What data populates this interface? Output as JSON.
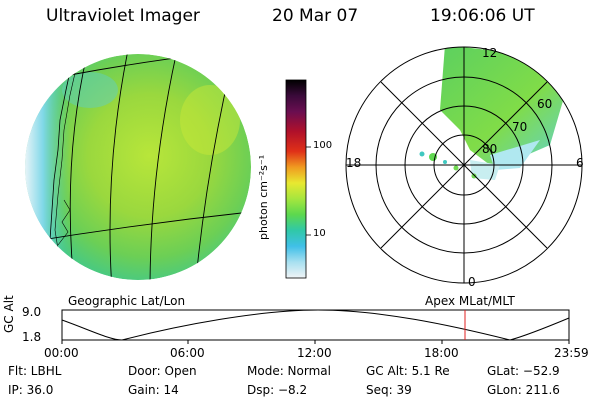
{
  "header": {
    "title": "Ultraviolet Imager",
    "date": "20 Mar 07",
    "time": "19:06:06 UT"
  },
  "colorbar": {
    "unit_label": "photon cm⁻²s⁻¹",
    "ticks": [
      "100",
      "10"
    ],
    "colors": [
      "#000000",
      "#3a0a3a",
      "#5a1050",
      "#8a0e2a",
      "#c8101a",
      "#e84a10",
      "#f0a020",
      "#e8e830",
      "#a8e840",
      "#50d850",
      "#30c8a0",
      "#40c0e8",
      "#a0e0f0",
      "#e8f0f4"
    ]
  },
  "polar_plot": {
    "mlt_labels": {
      "top": "12",
      "left": "18",
      "right": "6",
      "bottom": "0"
    },
    "mlat_labels": [
      "60",
      "70",
      "80"
    ]
  },
  "map_labels": {
    "geographic": "Geographic Lat/Lon",
    "apex": "Apex  MLat/MLT"
  },
  "altitude_panel": {
    "ylabel": "GC Alt",
    "ytick_top": "9.0",
    "ytick_bottom": "1.8",
    "x_ticks": [
      "00:00",
      "06:00",
      "12:00",
      "18:00",
      "23:59"
    ],
    "current_time_marker_color": "#e02020"
  },
  "info": {
    "filter": "Flt: LBHL",
    "door": "Door: Open",
    "mode": "Mode: Normal",
    "gc_alt": "GC Alt: 5.1 Re",
    "glat": "GLat: −52.9",
    "ip": "IP: 36.0",
    "gain": "Gain: 14",
    "dsp": "Dsp:    −8.2",
    "seq": "Seq: 39",
    "glon": "GLon: 211.6"
  }
}
